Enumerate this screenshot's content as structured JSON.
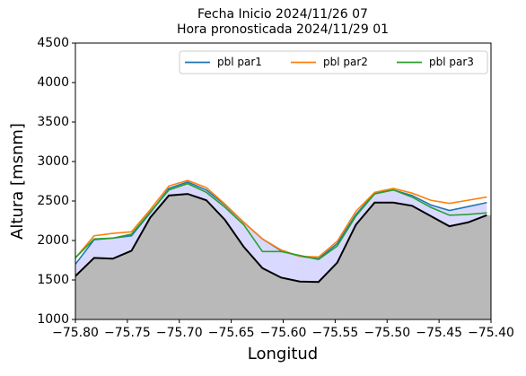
{
  "chart_data": {
    "type": "line",
    "title": "Fecha Inicio 2024/11/26 07",
    "subtitle": "Hora pronosticada 2024/11/29 01",
    "x_label": "Longitud",
    "y_label": "Altura [msnm]",
    "x": [
      -75.8,
      -75.782,
      -75.764,
      -75.746,
      -75.728,
      -75.71,
      -75.692,
      -75.674,
      -75.656,
      -75.638,
      -75.62,
      -75.602,
      -75.584,
      -75.566,
      -75.548,
      -75.53,
      -75.512,
      -75.494,
      -75.476,
      -75.458,
      -75.44,
      -75.422,
      -75.404
    ],
    "series": [
      {
        "name": "pbl par1",
        "color": "#1f77b4",
        "values": [
          1700,
          2010,
          2030,
          2060,
          2350,
          2660,
          2740,
          2640,
          2450,
          2230,
          2020,
          1870,
          1800,
          1770,
          1960,
          2330,
          2600,
          2640,
          2570,
          2450,
          2380,
          2430,
          2480
        ]
      },
      {
        "name": "pbl par2",
        "color": "#ff7f0e",
        "values": [
          1780,
          2060,
          2090,
          2110,
          2390,
          2690,
          2760,
          2670,
          2460,
          2230,
          2020,
          1880,
          1800,
          1790,
          1990,
          2370,
          2610,
          2660,
          2600,
          2510,
          2470,
          2510,
          2550
        ]
      },
      {
        "name": "pbl par3",
        "color": "#2ca02c",
        "values": [
          1780,
          2020,
          2030,
          2080,
          2360,
          2640,
          2720,
          2610,
          2420,
          2200,
          1860,
          1860,
          1810,
          1760,
          1930,
          2310,
          2590,
          2640,
          2550,
          2420,
          2320,
          2330,
          2350
        ]
      }
    ],
    "terrain": {
      "color": "#000000",
      "fill_color": "#b9b9b9",
      "values": [
        1550,
        1780,
        1770,
        1870,
        2290,
        2570,
        2590,
        2510,
        2260,
        1920,
        1650,
        1530,
        1480,
        1475,
        1720,
        2200,
        2480,
        2480,
        2440,
        2310,
        2180,
        2230,
        2320
      ]
    },
    "band_color": "#d9d9ff",
    "xlim": [
      -75.8,
      -75.4
    ],
    "ylim": [
      1000,
      4500
    ],
    "xticks": [
      {
        "value": -75.8,
        "label": "−75.80"
      },
      {
        "value": -75.75,
        "label": "−75.75"
      },
      {
        "value": -75.7,
        "label": "−75.70"
      },
      {
        "value": -75.65,
        "label": "−75.65"
      },
      {
        "value": -75.6,
        "label": "−75.60"
      },
      {
        "value": -75.55,
        "label": "−75.55"
      },
      {
        "value": -75.5,
        "label": "−75.50"
      },
      {
        "value": -75.45,
        "label": "−75.45"
      },
      {
        "value": -75.4,
        "label": "−75.40"
      }
    ],
    "yticks": [
      1000,
      1500,
      2000,
      2500,
      3000,
      3500,
      4000,
      4500
    ],
    "legend": "upper right"
  }
}
